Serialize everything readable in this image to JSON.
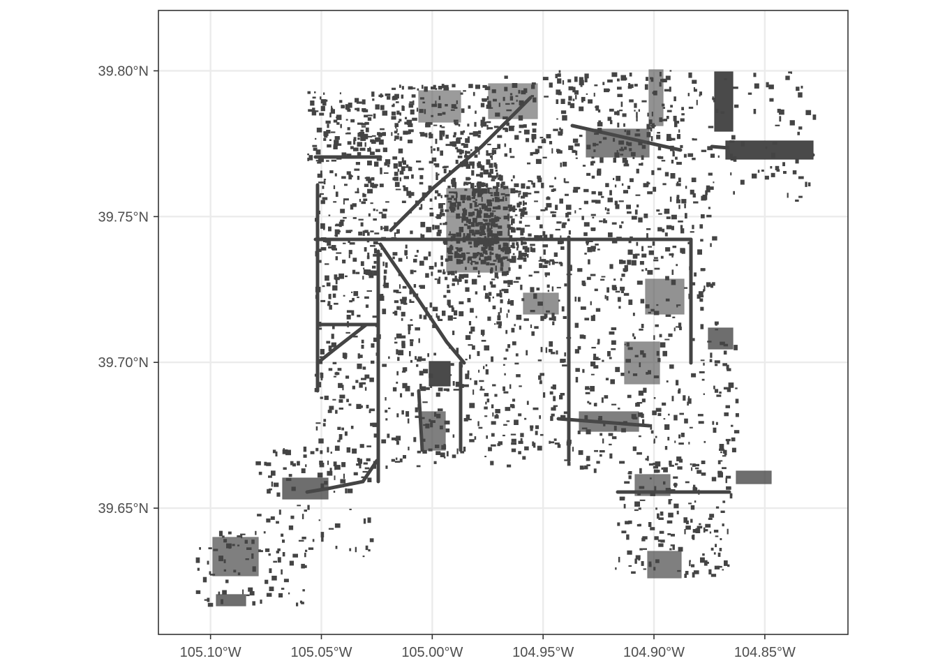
{
  "chart_data": {
    "type": "map",
    "title": "",
    "xlabel": "",
    "ylabel": "",
    "xlim": [
      -105.1235,
      -104.8125
    ],
    "ylim": [
      39.6067,
      39.8207
    ],
    "grid": true,
    "feature_color": "#444444",
    "x_ticks": [
      {
        "value": -105.1,
        "label": "105.10°W"
      },
      {
        "value": -105.05,
        "label": "105.05°W"
      },
      {
        "value": -105.0,
        "label": "105.00°W"
      },
      {
        "value": -104.95,
        "label": "104.95°W"
      },
      {
        "value": -104.9,
        "label": "104.90°W"
      },
      {
        "value": -104.85,
        "label": "104.85°W"
      }
    ],
    "y_ticks": [
      {
        "value": 39.8,
        "label": "39.80°N"
      },
      {
        "value": 39.75,
        "label": "39.75°N"
      },
      {
        "value": 39.7,
        "label": "39.70°N"
      },
      {
        "value": 39.65,
        "label": "39.65°N"
      }
    ]
  }
}
